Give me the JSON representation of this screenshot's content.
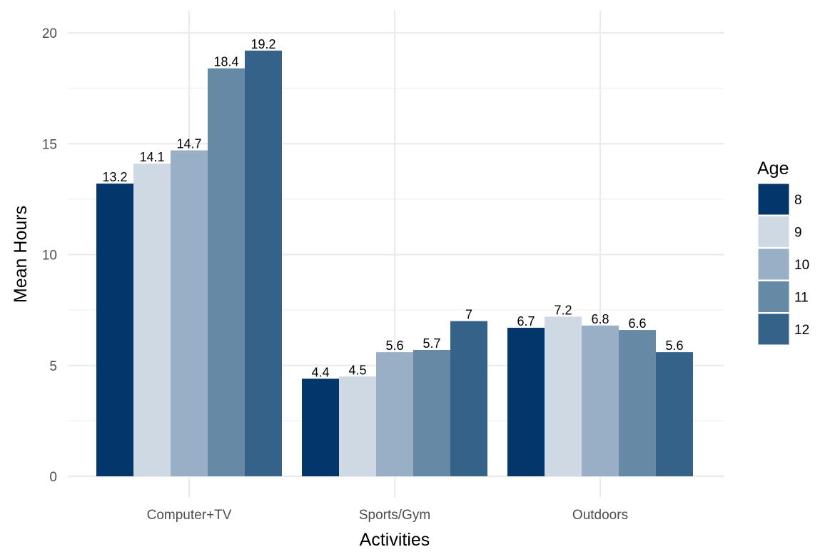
{
  "chart_data": {
    "type": "bar",
    "xlabel": "Activities",
    "ylabel": "Mean Hours",
    "ylim": [
      0,
      20
    ],
    "yticks": [
      0,
      5,
      10,
      15,
      20
    ],
    "grid": true,
    "categories": [
      "Computer+TV",
      "Sports/Gym",
      "Outdoors"
    ],
    "legend": {
      "title": "Age",
      "placement": "right"
    },
    "series": [
      {
        "name": "8",
        "color": "#03366a",
        "values": [
          13.2,
          4.4,
          6.7
        ]
      },
      {
        "name": "9",
        "color": "#cfd9e3",
        "values": [
          14.1,
          4.5,
          7.2
        ]
      },
      {
        "name": "10",
        "color": "#99afc5",
        "values": [
          14.7,
          5.6,
          6.8
        ]
      },
      {
        "name": "11",
        "color": "#6689a6",
        "values": [
          18.4,
          5.7,
          6.6
        ]
      },
      {
        "name": "12",
        "color": "#356288",
        "values": [
          19.2,
          7,
          5.6
        ]
      }
    ]
  }
}
